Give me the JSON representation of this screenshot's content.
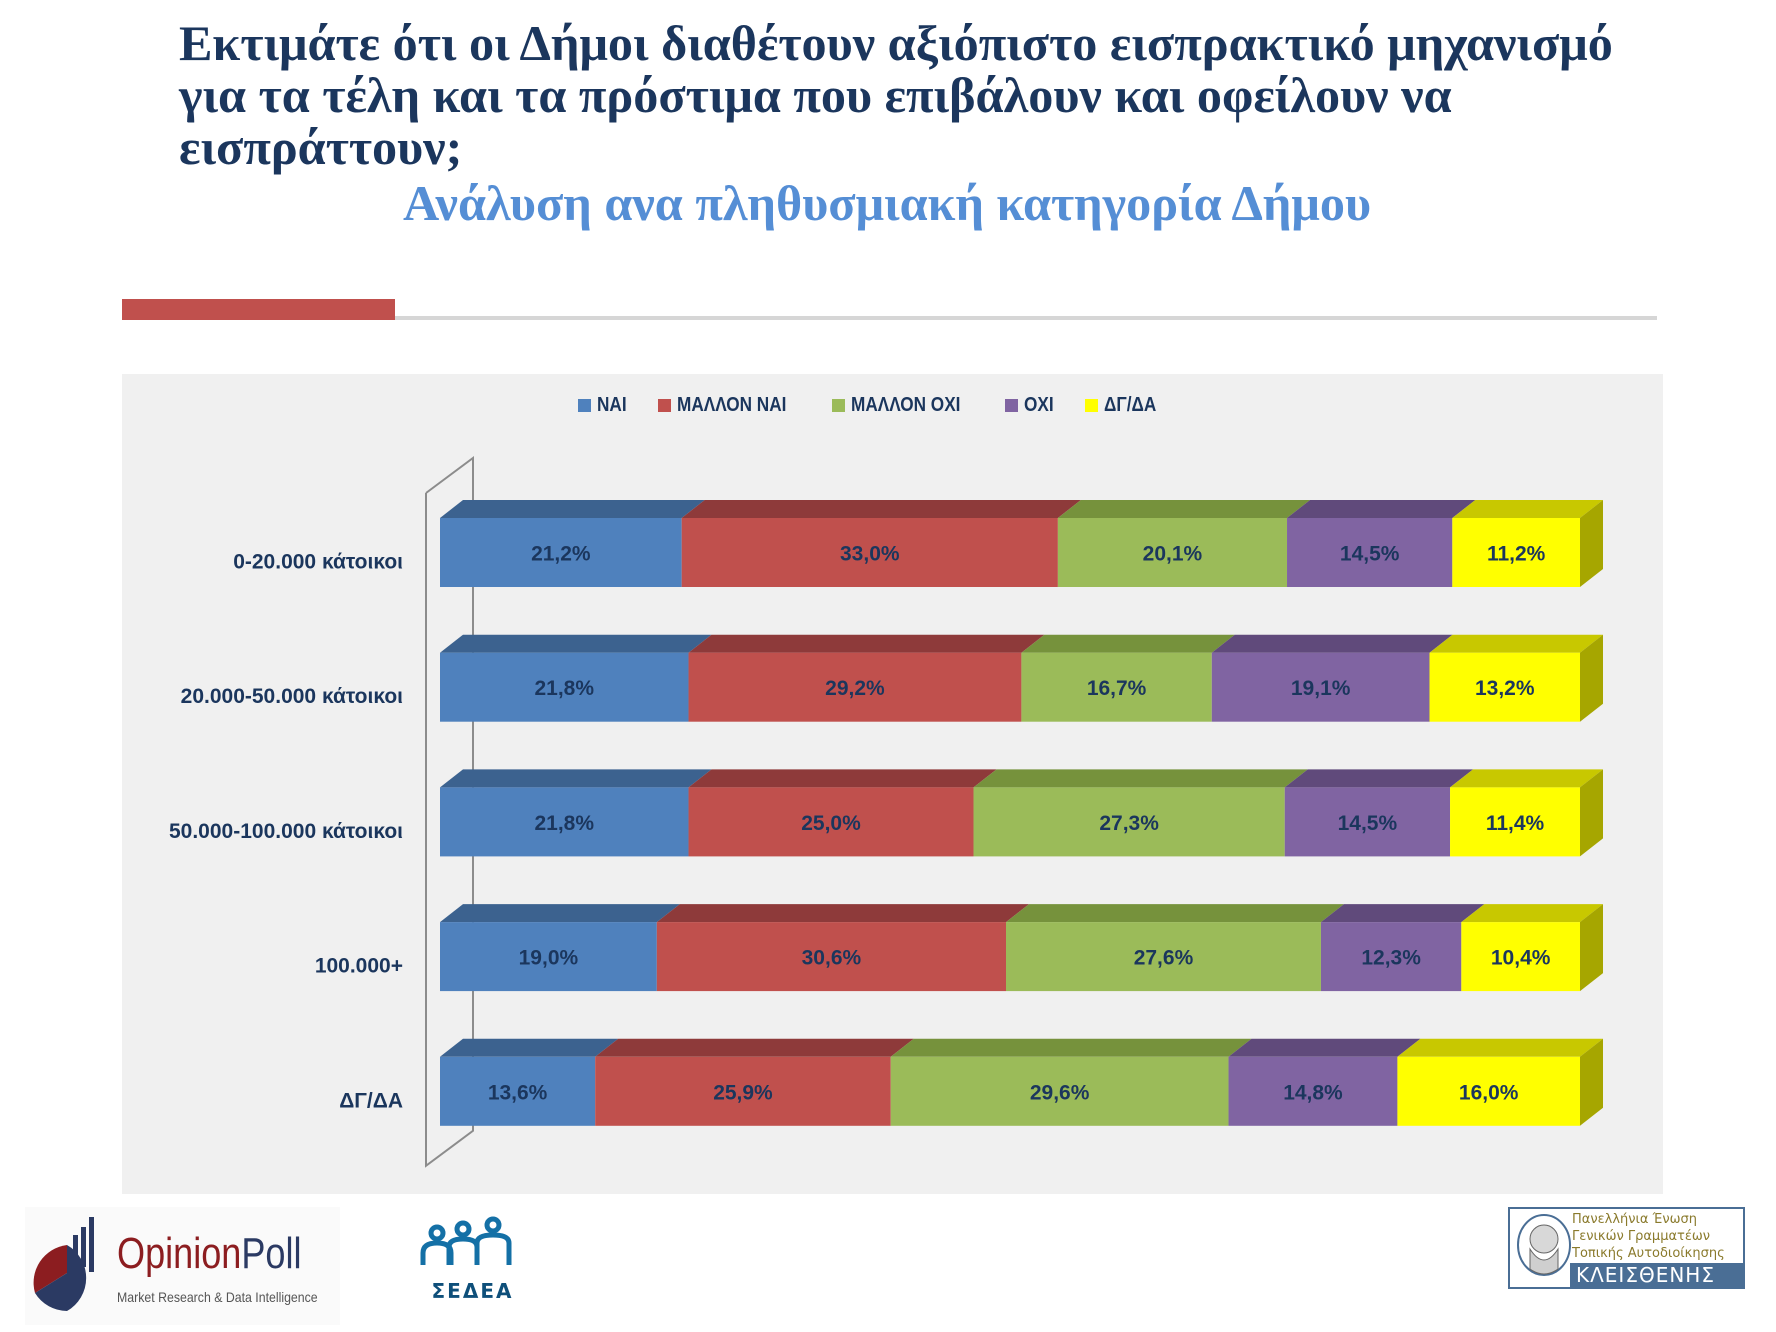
{
  "header": {
    "title_lines": [
      "Εκτιμάτε ότι οι Δήμοι διαθέτουν αξιόπιστο εισπρακτικό μηχανισμό",
      "για τα τέλη και τα πρόστιμα που επιβάλουν και οφείλουν να",
      "εισπράττουν;"
    ],
    "subtitle": "Ανάλυση ανα πληθυσμιακή κατηγορία Δήμου"
  },
  "chart_data": {
    "type": "bar",
    "orientation": "horizontal",
    "stacked": "percent",
    "style": "3d",
    "title": "",
    "xlabel": "",
    "ylabel": "",
    "legend_position": "top",
    "grid": false,
    "categories": [
      "0-20.000 κάτοικοι",
      "20.000-50.000 κάτοικοι",
      "50.000-100.000 κάτοικοι",
      "100.000+",
      "ΔΓ/ΔΑ"
    ],
    "series": [
      {
        "name": "ΝΑΙ",
        "color": "#4F81BD",
        "values": [
          21.2,
          21.8,
          21.8,
          19.0,
          13.6
        ],
        "labels": [
          "21,2%",
          "21,8%",
          "21,8%",
          "19,0%",
          "13,6%"
        ]
      },
      {
        "name": "ΜΑΛΛΟΝ ΝΑΙ",
        "color": "#C0504D",
        "values": [
          33.0,
          29.2,
          25.0,
          30.6,
          25.9
        ],
        "labels": [
          "33,0%",
          "29,2%",
          "25,0%",
          "30,6%",
          "25,9%"
        ]
      },
      {
        "name": "ΜΑΛΛΟΝ ΟΧΙ",
        "color": "#9BBB59",
        "values": [
          20.1,
          16.7,
          27.3,
          27.6,
          29.6
        ],
        "labels": [
          "20,1%",
          "16,7%",
          "27,3%",
          "27,6%",
          "29,6%"
        ]
      },
      {
        "name": "ΟΧΙ",
        "color": "#8064A2",
        "values": [
          14.5,
          19.1,
          14.5,
          12.3,
          14.8
        ],
        "labels": [
          "14,5%",
          "19,1%",
          "14,5%",
          "12,3%",
          "14,8%"
        ]
      },
      {
        "name": "ΔΓ/ΔΑ",
        "color": "#FFFF00",
        "values": [
          11.2,
          13.2,
          11.4,
          10.4,
          16.0
        ],
        "labels": [
          "11,2%",
          "13,2%",
          "11,4%",
          "10,4%",
          "16,0%"
        ]
      }
    ],
    "shade_colors": {
      "ΝΑΙ": {
        "top": "#3C628F"
      },
      "ΜΑΛΛΟΝ ΝΑΙ": {
        "top": "#8E3A3A"
      },
      "ΜΑΛΛΟΝ ΟΧΙ": {
        "top": "#76923C"
      },
      "ΟΧΙ": {
        "top": "#604A7B"
      },
      "ΔΓ/ΔΑ": {
        "top": "#C8C800",
        "side": "#A6A600"
      }
    }
  },
  "footer": {
    "opinionpoll": {
      "name_part1": "Opinion",
      "name_part2": "Poll",
      "tagline": "Market Research & Data Intelligence"
    },
    "sedea": {
      "text": "ΣΕΔΕΑ"
    },
    "kleisthenis": {
      "lines": [
        "Πανελλήνια Ένωση",
        "Γενικών Γραμματέων",
        "Τοπικής Αυτοδιοίκησης"
      ],
      "name": "ΚΛΕΙΣΘΕΝΗΣ"
    }
  },
  "colors": {
    "title": "#1B365D",
    "subtitle": "#558ED5",
    "accent": "#C0504D",
    "panel_bg": "#F0F0F0",
    "label_text": "#1B365D"
  }
}
